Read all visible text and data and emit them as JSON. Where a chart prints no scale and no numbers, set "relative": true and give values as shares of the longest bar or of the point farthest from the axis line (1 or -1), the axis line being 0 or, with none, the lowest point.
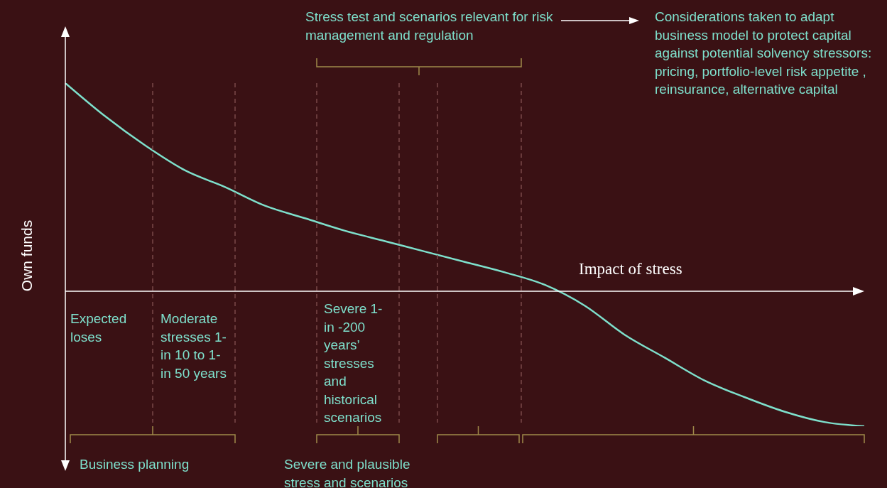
{
  "chart_data": {
    "type": "line",
    "relative": true,
    "xlabel": "Impact of stress",
    "ylabel": "Own funds",
    "categories": [
      null,
      null,
      null,
      null,
      null,
      null,
      null,
      null,
      null,
      null,
      null,
      null,
      null,
      null,
      null,
      null,
      null,
      null,
      null,
      null,
      null
    ],
    "series": [
      {
        "color": "#7ee0cc",
        "values": [
          1.0,
          0.84,
          0.7,
          0.58,
          0.5,
          0.41,
          0.35,
          0.29,
          0.24,
          0.19,
          0.14,
          0.09,
          0.03,
          -0.07,
          -0.21,
          -0.32,
          -0.43,
          -0.51,
          -0.58,
          -0.63,
          -0.65
        ]
      }
    ],
    "annotations": [
      "Stress test and scenarios relevant for risk management and regulation",
      "Considerations taken to adapt business model to protect capital against potential solvency stressors: pricing, portfolio-level risk appetite , reinsurance, alternative capital",
      "Expected loses",
      "Moderate stresses 1- in 10 to 1- in 50 years",
      "Severe 1- in -200 years’ stresses and historical scenarios",
      "Business planning",
      "Severe and plausible stress and scenarios"
    ]
  }
}
